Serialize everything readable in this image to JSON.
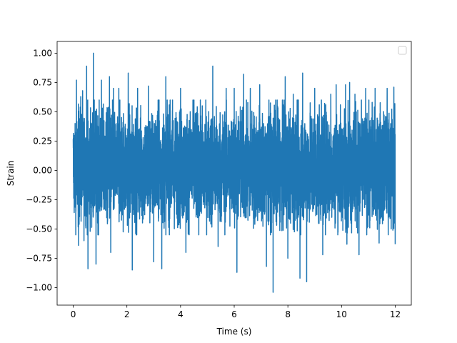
{
  "chart_data": {
    "type": "line",
    "title": "",
    "xlabel": "Time (s)",
    "ylabel": "Strain",
    "xlim": [
      -0.6,
      12.6
    ],
    "ylim": [
      -1.15,
      1.1
    ],
    "x_ticks": [
      0,
      2,
      4,
      6,
      8,
      10,
      12
    ],
    "x_tick_labels": [
      "0",
      "2",
      "4",
      "6",
      "8",
      "10",
      "12"
    ],
    "y_ticks": [
      -1.0,
      -0.75,
      -0.5,
      -0.25,
      0.0,
      0.25,
      0.5,
      0.75,
      1.0
    ],
    "y_tick_labels": [
      "−1.00",
      "−0.75",
      "−0.50",
      "−0.25",
      "0.00",
      "0.25",
      "0.50",
      "0.75",
      "1.00"
    ],
    "grid": false,
    "legend": {
      "placement": "top-right",
      "entries": []
    },
    "series": [
      {
        "color": "#1f77b4",
        "description": "dense noisy signal sampled from t=0 to t=12 s, bulk amplitude about ±0.5 with peaks reaching ±1",
        "x_range": [
          0,
          12
        ],
        "bulk_range": [
          -0.5,
          0.55
        ],
        "max": 1.0,
        "min": -1.04,
        "peaks": [
          {
            "x": 0.07,
            "y": 0.4
          },
          {
            "x": 0.1,
            "y": -0.35
          },
          {
            "x": 0.12,
            "y": 0.77
          },
          {
            "x": 0.2,
            "y": -0.64
          },
          {
            "x": 0.28,
            "y": 0.63
          },
          {
            "x": 0.35,
            "y": 0.68
          },
          {
            "x": 0.4,
            "y": -0.6
          },
          {
            "x": 0.5,
            "y": 0.89
          },
          {
            "x": 0.55,
            "y": -0.84
          },
          {
            "x": 0.75,
            "y": 1.0
          },
          {
            "x": 0.85,
            "y": -0.8
          },
          {
            "x": 1.05,
            "y": 0.77
          },
          {
            "x": 1.35,
            "y": 0.8
          },
          {
            "x": 1.4,
            "y": -0.7
          },
          {
            "x": 1.5,
            "y": 0.7
          },
          {
            "x": 1.7,
            "y": 0.7
          },
          {
            "x": 2.05,
            "y": 0.83
          },
          {
            "x": 2.2,
            "y": -0.85
          },
          {
            "x": 2.4,
            "y": 0.7
          },
          {
            "x": 2.8,
            "y": 0.72
          },
          {
            "x": 3.0,
            "y": -0.78
          },
          {
            "x": 3.2,
            "y": 0.6
          },
          {
            "x": 3.3,
            "y": -0.84
          },
          {
            "x": 3.45,
            "y": 0.8
          },
          {
            "x": 3.7,
            "y": 0.6
          },
          {
            "x": 4.0,
            "y": 0.7
          },
          {
            "x": 4.2,
            "y": -0.7
          },
          {
            "x": 4.5,
            "y": 0.6
          },
          {
            "x": 5.2,
            "y": 0.89
          },
          {
            "x": 5.4,
            "y": -0.65
          },
          {
            "x": 5.7,
            "y": 0.7
          },
          {
            "x": 6.0,
            "y": 0.7
          },
          {
            "x": 6.1,
            "y": -0.87
          },
          {
            "x": 6.35,
            "y": 0.82
          },
          {
            "x": 6.6,
            "y": 0.7
          },
          {
            "x": 6.95,
            "y": 0.73
          },
          {
            "x": 7.2,
            "y": -0.82
          },
          {
            "x": 7.45,
            "y": -1.04
          },
          {
            "x": 7.6,
            "y": 0.6
          },
          {
            "x": 7.9,
            "y": 0.8
          },
          {
            "x": 8.0,
            "y": -0.75
          },
          {
            "x": 8.2,
            "y": 0.65
          },
          {
            "x": 8.45,
            "y": -0.92
          },
          {
            "x": 8.55,
            "y": 0.83
          },
          {
            "x": 8.7,
            "y": -0.95
          },
          {
            "x": 9.0,
            "y": 0.7
          },
          {
            "x": 9.3,
            "y": -0.72
          },
          {
            "x": 9.6,
            "y": 0.65
          },
          {
            "x": 9.8,
            "y": 0.73
          },
          {
            "x": 10.15,
            "y": 0.73
          },
          {
            "x": 10.2,
            "y": -0.63
          },
          {
            "x": 10.3,
            "y": 0.75
          },
          {
            "x": 10.5,
            "y": 0.65
          },
          {
            "x": 10.65,
            "y": -0.72
          },
          {
            "x": 10.9,
            "y": 0.7
          },
          {
            "x": 11.25,
            "y": 0.7
          },
          {
            "x": 11.4,
            "y": -0.62
          },
          {
            "x": 11.7,
            "y": 0.7
          },
          {
            "x": 11.85,
            "y": -0.5
          },
          {
            "x": 11.95,
            "y": 0.71
          },
          {
            "x": 12.0,
            "y": -0.63
          }
        ]
      }
    ]
  }
}
